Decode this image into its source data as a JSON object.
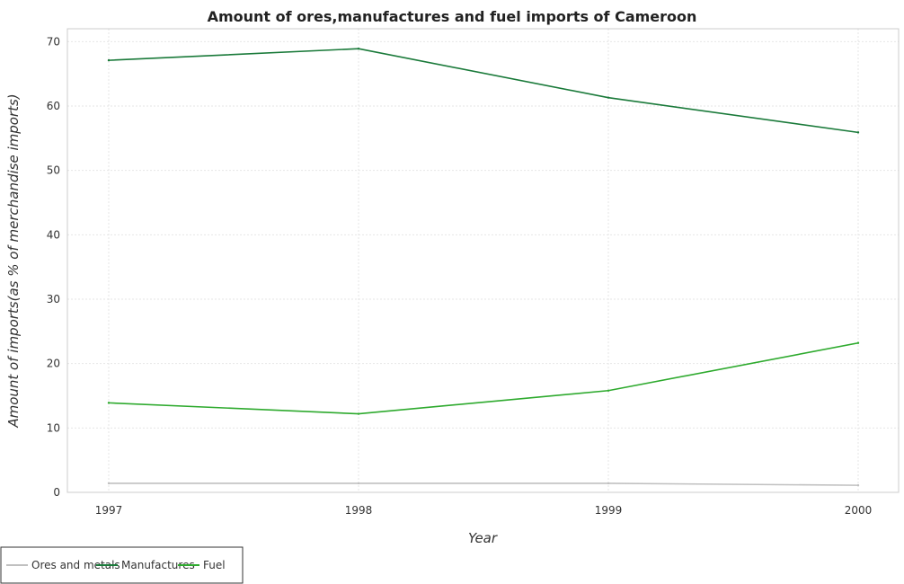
{
  "chart_data": {
    "type": "line",
    "title": "Amount of ores,manufactures and fuel imports of Cameroon",
    "xlabel": "Year",
    "ylabel": "Amount of imports(as % of merchandise imports)",
    "categories": [
      "1997",
      "1998",
      "1999",
      "2000"
    ],
    "ylim": [
      0,
      72
    ],
    "yticks": [
      0,
      10,
      20,
      30,
      40,
      50,
      60,
      70
    ],
    "grid": true,
    "legend_position": "bottom-left",
    "series": [
      {
        "name": "Ores and metals",
        "color": "#c0c0c0",
        "values": [
          1.4,
          1.4,
          1.4,
          1.1
        ]
      },
      {
        "name": "Manufactures",
        "color": "#1a7a3a",
        "values": [
          67.1,
          68.9,
          61.3,
          55.9
        ]
      },
      {
        "name": "Fuel",
        "color": "#2eaa2e",
        "values": [
          13.9,
          12.2,
          15.8,
          23.2
        ]
      }
    ]
  }
}
